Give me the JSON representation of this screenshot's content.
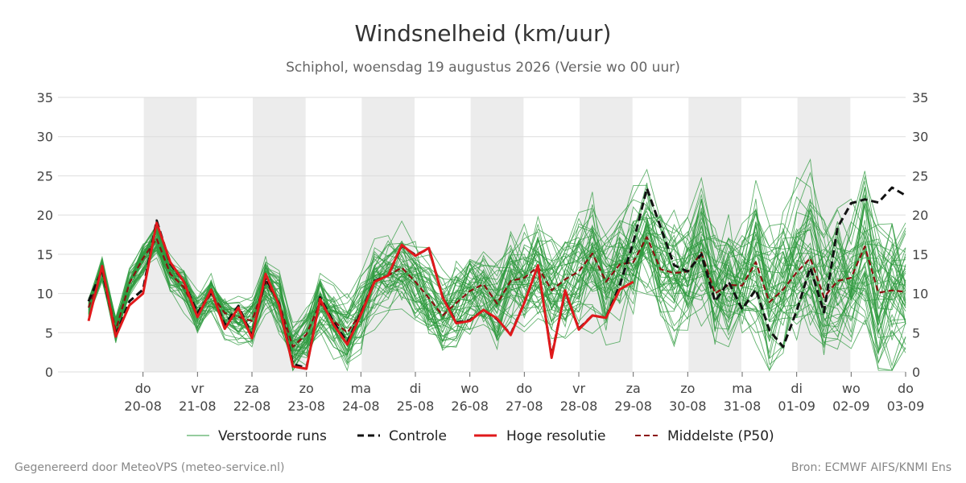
{
  "title": "Windsnelheid (km/uur)",
  "subtitle": "Schiphol, woensdag 19 augustus 2026 (Versie wo 00 uur)",
  "footer_left": "Gegenereerd door MeteoVPS (meteo-service.nl)",
  "footer_right": "Bron: ECMWF AIFS/KNMI Ens",
  "colors": {
    "ensemble": "#2e9a3e",
    "control": "#111111",
    "hires": "#e0191b",
    "p50": "#8b1010",
    "band": "#ececec",
    "grid": "#dddddd"
  },
  "chart_data": {
    "type": "line",
    "x_unit": "hours since 19-08 00:00",
    "xlim": [
      0,
      360
    ],
    "ylim": [
      0,
      35
    ],
    "yticks": [
      0,
      5,
      10,
      15,
      20,
      25,
      30,
      35
    ],
    "grid": true,
    "legend_position": "bottom",
    "weekend_bands_note": "alternating grey day bands",
    "xticks": [
      {
        "x": 24,
        "day": "do",
        "date": "20-08"
      },
      {
        "x": 48,
        "day": "vr",
        "date": "21-08"
      },
      {
        "x": 72,
        "day": "za",
        "date": "22-08"
      },
      {
        "x": 96,
        "day": "zo",
        "date": "23-08"
      },
      {
        "x": 120,
        "day": "ma",
        "date": "24-08"
      },
      {
        "x": 144,
        "day": "di",
        "date": "25-08"
      },
      {
        "x": 168,
        "day": "wo",
        "date": "26-08"
      },
      {
        "x": 192,
        "day": "do",
        "date": "27-08"
      },
      {
        "x": 216,
        "day": "vr",
        "date": "28-08"
      },
      {
        "x": 240,
        "day": "za",
        "date": "29-08"
      },
      {
        "x": 264,
        "day": "zo",
        "date": "30-08"
      },
      {
        "x": 288,
        "day": "ma",
        "date": "31-08"
      },
      {
        "x": 312,
        "day": "di",
        "date": "01-09"
      },
      {
        "x": 336,
        "day": "wo",
        "date": "02-09"
      },
      {
        "x": 360,
        "day": "do",
        "date": "03-09"
      }
    ],
    "bands": [
      [
        24,
        48
      ],
      [
        72,
        96
      ],
      [
        120,
        144
      ],
      [
        168,
        192
      ],
      [
        216,
        240
      ],
      [
        264,
        288
      ],
      [
        312,
        336
      ]
    ],
    "legend": [
      "Verstoorde runs",
      "Controle",
      "Hoge resolutie",
      "Middelste (P50)"
    ],
    "series": [
      {
        "name": "Hoge resolutie",
        "x": [
          0,
          6,
          12,
          18,
          24,
          30,
          36,
          42,
          48,
          54,
          60,
          66,
          72,
          78,
          84,
          90,
          96,
          102,
          108,
          114,
          120,
          126,
          132,
          138,
          144,
          150,
          156,
          162,
          168,
          174,
          180,
          186,
          192,
          198,
          204,
          210,
          216,
          222,
          228,
          234,
          240
        ],
        "y": [
          6.5,
          13.5,
          4.5,
          8.5,
          10,
          19,
          14,
          11.5,
          7,
          10.5,
          5.5,
          8.2,
          4.3,
          12.5,
          8.5,
          0.7,
          0.4,
          9.3,
          6,
          3.5,
          7.3,
          11.5,
          12.3,
          16.2,
          14.8,
          15.8,
          9.5,
          6.2,
          6.5,
          7.9,
          6.8,
          4.7,
          8.8,
          13.6,
          1.8,
          10.4,
          5.4,
          7.2,
          6.9,
          10.5,
          11.5
        ]
      },
      {
        "name": "Controle",
        "x": [
          0,
          6,
          12,
          18,
          24,
          30,
          36,
          42,
          48,
          54,
          60,
          66,
          72,
          78,
          84,
          90,
          96,
          102,
          108,
          114,
          120,
          126,
          132,
          138,
          144,
          150,
          156,
          162,
          168,
          174,
          180,
          186,
          192,
          198,
          204,
          210,
          216,
          222,
          228,
          234,
          240,
          246,
          252,
          258,
          264,
          270,
          276,
          282,
          288,
          294,
          300,
          306,
          312,
          318,
          324,
          330,
          336,
          342,
          348,
          354,
          360
        ],
        "y": [
          9,
          13,
          4.7,
          9,
          10.5,
          19.3,
          13.8,
          11.5,
          7.5,
          10.2,
          6,
          8.4,
          4.6,
          12,
          8.7,
          1,
          0.5,
          9.5,
          6.3,
          3.8,
          7.5,
          11.6,
          12.3,
          16.1,
          14.9,
          15.7,
          9.6,
          6.3,
          6.6,
          7.9,
          6.7,
          4.8,
          8.8,
          13.5,
          2,
          10.2,
          5.5,
          7.2,
          6.9,
          11,
          16.5,
          23.4,
          18.5,
          13.6,
          12.8,
          15,
          9,
          11.5,
          8,
          10.5,
          5.3,
          3.2,
          7.8,
          13.3,
          7.6,
          18.4,
          21.5,
          22,
          21.6,
          23.5,
          22.5
        ]
      },
      {
        "name": "Middelste (P50)",
        "x": [
          0,
          6,
          12,
          18,
          24,
          30,
          36,
          42,
          48,
          54,
          60,
          66,
          72,
          78,
          84,
          90,
          96,
          102,
          108,
          114,
          120,
          126,
          132,
          138,
          144,
          150,
          156,
          162,
          168,
          174,
          180,
          186,
          192,
          198,
          204,
          210,
          216,
          222,
          228,
          234,
          240,
          246,
          252,
          258,
          264,
          270,
          276,
          282,
          288,
          294,
          300,
          306,
          312,
          318,
          324,
          330,
          336,
          342,
          348,
          354,
          360
        ],
        "y": [
          8.2,
          13,
          5.3,
          11.3,
          14.5,
          17,
          12.5,
          10.8,
          7.3,
          10,
          7.5,
          7,
          6.5,
          11.5,
          8.7,
          3.2,
          4.8,
          8.8,
          6.5,
          5,
          7.5,
          11.6,
          12.3,
          13.3,
          11.5,
          9.4,
          7.2,
          8.8,
          10.3,
          11.2,
          8.7,
          11.6,
          12,
          13.4,
          10.4,
          11.8,
          12.8,
          15.1,
          11.5,
          13.7,
          14,
          17.2,
          13.1,
          12.6,
          12.8,
          15.2,
          10,
          11.1,
          11,
          14,
          8.9,
          10.5,
          12.7,
          14.5,
          9.5,
          11.6,
          12,
          16,
          10.1,
          10.4,
          10.2
        ]
      }
    ],
    "ensemble_members": 50
  }
}
